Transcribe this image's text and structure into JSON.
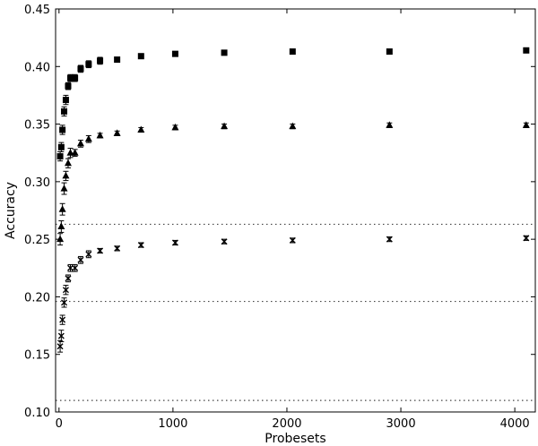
{
  "chart_data": {
    "type": "scatter",
    "title": "",
    "xlabel": "Probesets",
    "ylabel": "Accuracy",
    "xlim": [
      -30,
      4180
    ],
    "ylim": [
      0.1,
      0.45
    ],
    "xticks": [
      0,
      1000,
      2000,
      3000,
      4000
    ],
    "yticks": [
      0.1,
      0.15,
      0.2,
      0.25,
      0.3,
      0.35,
      0.4,
      0.45
    ],
    "xtick_labels": [
      "0",
      "1000",
      "2000",
      "3000",
      "4000"
    ],
    "ytick_labels": [
      "0.10",
      "0.15",
      "0.20",
      "0.25",
      "0.30",
      "0.35",
      "0.40",
      "0.45"
    ],
    "grid": false,
    "legend": "none",
    "reference_lines": [
      0.263,
      0.196,
      0.11
    ],
    "series": [
      {
        "marker": "square",
        "x": [
          10,
          20,
          30,
          45,
          60,
          80,
          100,
          140,
          190,
          260,
          360,
          510,
          720,
          1020,
          1450,
          2050,
          2900,
          4100
        ],
        "y": [
          0.322,
          0.33,
          0.345,
          0.361,
          0.371,
          0.383,
          0.39,
          0.39,
          0.398,
          0.402,
          0.405,
          0.406,
          0.409,
          0.411,
          0.412,
          0.413,
          0.413,
          0.414
        ],
        "err": [
          0.004,
          0.004,
          0.004,
          0.004,
          0.004,
          0.003,
          0.003,
          0.003,
          0.003,
          0.003,
          0.003,
          0.002,
          0.002,
          0.002,
          0.002,
          0.002,
          0.002,
          0.002
        ]
      },
      {
        "marker": "triangle",
        "x": [
          10,
          20,
          30,
          45,
          60,
          80,
          100,
          140,
          190,
          260,
          360,
          510,
          720,
          1020,
          1450,
          2050,
          2900,
          4100
        ],
        "y": [
          0.25,
          0.261,
          0.276,
          0.294,
          0.305,
          0.316,
          0.325,
          0.325,
          0.333,
          0.337,
          0.34,
          0.342,
          0.345,
          0.347,
          0.348,
          0.348,
          0.349,
          0.349
        ],
        "err": [
          0.005,
          0.005,
          0.005,
          0.005,
          0.004,
          0.004,
          0.004,
          0.003,
          0.003,
          0.003,
          0.002,
          0.002,
          0.002,
          0.002,
          0.002,
          0.002,
          0.002,
          0.002
        ]
      },
      {
        "marker": "x",
        "x": [
          10,
          20,
          30,
          45,
          60,
          80,
          100,
          140,
          190,
          260,
          360,
          510,
          720,
          1020,
          1450,
          2050,
          2900,
          4100
        ],
        "y": [
          0.157,
          0.166,
          0.18,
          0.195,
          0.206,
          0.216,
          0.225,
          0.225,
          0.232,
          0.237,
          0.24,
          0.242,
          0.245,
          0.247,
          0.248,
          0.249,
          0.25,
          0.251
        ],
        "err": [
          0.005,
          0.005,
          0.004,
          0.004,
          0.004,
          0.003,
          0.003,
          0.003,
          0.003,
          0.003,
          0.002,
          0.002,
          0.002,
          0.002,
          0.002,
          0.002,
          0.002,
          0.002
        ]
      }
    ]
  }
}
